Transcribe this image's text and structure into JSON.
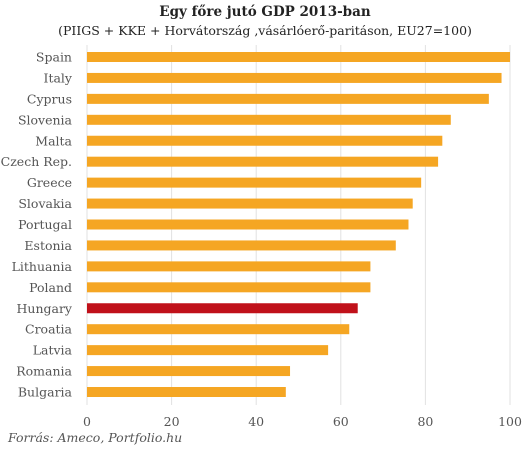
{
  "chart_data": {
    "type": "bar",
    "orientation": "horizontal",
    "title": "Egy főre jutó GDP 2013-ban",
    "subtitle": "(PIIGS + KKE + Horvátország ,vásárlóerő-paritáson, EU27=100)",
    "categories": [
      "Spain",
      "Italy",
      "Cyprus",
      "Slovenia",
      "Malta",
      "Czech Rep.",
      "Greece",
      "Slovakia",
      "Portugal",
      "Estonia",
      "Lithuania",
      "Poland",
      "Hungary",
      "Croatia",
      "Latvia",
      "Romania",
      "Bulgaria"
    ],
    "values": [
      100,
      98,
      95,
      86,
      84,
      83,
      79,
      77,
      76,
      73,
      67,
      67,
      64,
      62,
      57,
      48,
      47
    ],
    "highlight": "Hungary",
    "bar_color": "#F5A623",
    "highlight_color": "#C0111A",
    "xlim": [
      0,
      100
    ],
    "xticks": [
      0,
      20,
      40,
      60,
      80,
      100
    ],
    "xlabel": "",
    "ylabel": "",
    "grid": true,
    "legend": "none"
  },
  "source": "Forrás: Ameco, Portfolio.hu"
}
